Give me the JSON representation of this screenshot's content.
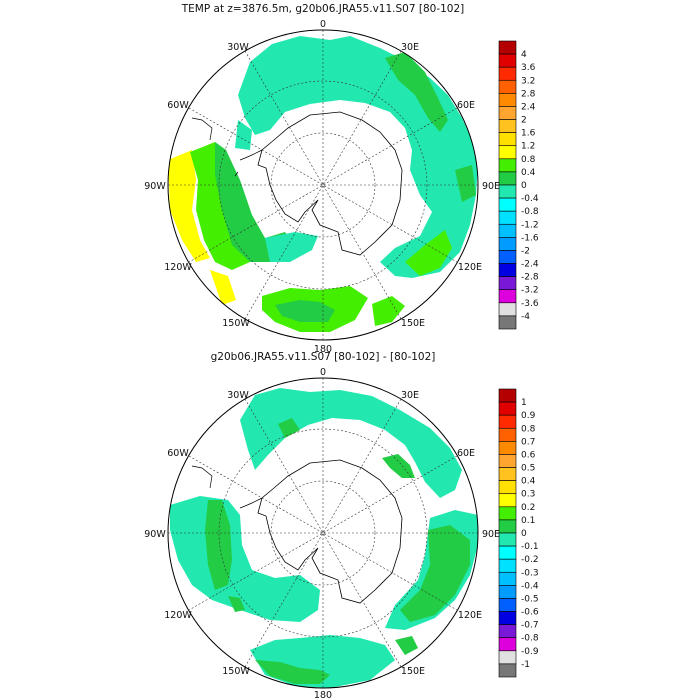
{
  "panels": [
    {
      "title": "TEMP at z=3876.5m, g20b06.JRA55.v11.S07 [80-102]",
      "lon_labels": {
        "top": "0",
        "bottom": "180",
        "upper_left": "30W",
        "upper_right": "30E",
        "left_upper": "60W",
        "right_upper": "60E",
        "left": "90W",
        "right": "90E",
        "left_lower": "120W",
        "right_lower": "120E",
        "lower_left": "150W",
        "lower_right": "150E"
      },
      "colorbar": {
        "labels": [
          "4",
          "3.6",
          "3.2",
          "2.8",
          "2.4",
          "2",
          "1.6",
          "1.2",
          "0.8",
          "0.4",
          "0",
          "-0.4",
          "-0.8",
          "-1.2",
          "-1.6",
          "-2",
          "-2.4",
          "-2.8",
          "-3.2",
          "-3.6",
          "-4"
        ],
        "colors": [
          "#b40000",
          "#e00000",
          "#ff2a00",
          "#ff6000",
          "#ff8a00",
          "#ffa530",
          "#ffc21f",
          "#ffe000",
          "#ffff00",
          "#44ee00",
          "#22cc44",
          "#22e8b0",
          "#00ffff",
          "#00e0ff",
          "#00c0ff",
          "#009cff",
          "#0060ff",
          "#0000e0",
          "#7a18d8",
          "#dd00dd",
          "#e0e0e0",
          "#777777"
        ]
      }
    },
    {
      "title": "g20b06.JRA55.v11.S07 [80-102] -  [80-102]",
      "lon_labels": {
        "top": "0",
        "bottom": "180",
        "upper_left": "30W",
        "upper_right": "30E",
        "left_upper": "60W",
        "right_upper": "60E",
        "left": "90W",
        "right": "90E",
        "left_lower": "120W",
        "right_lower": "120E",
        "lower_left": "150W",
        "lower_right": "150E"
      },
      "colorbar": {
        "labels": [
          "1",
          "0.9",
          "0.8",
          "0.7",
          "0.6",
          "0.5",
          "0.4",
          "0.3",
          "0.2",
          "0.1",
          "0",
          "-0.1",
          "-0.2",
          "-0.3",
          "-0.4",
          "-0.5",
          "-0.6",
          "-0.7",
          "-0.8",
          "-0.9",
          "-1"
        ],
        "colors": [
          "#b40000",
          "#e00000",
          "#ff2a00",
          "#ff6000",
          "#ff8a00",
          "#ffa530",
          "#ffc21f",
          "#ffe000",
          "#ffff00",
          "#44ee00",
          "#22cc44",
          "#22e8b0",
          "#00ffff",
          "#00e0ff",
          "#00c0ff",
          "#009cff",
          "#0060ff",
          "#0000e0",
          "#7a18d8",
          "#dd00dd",
          "#e0e0e0",
          "#777777"
        ]
      }
    }
  ]
}
